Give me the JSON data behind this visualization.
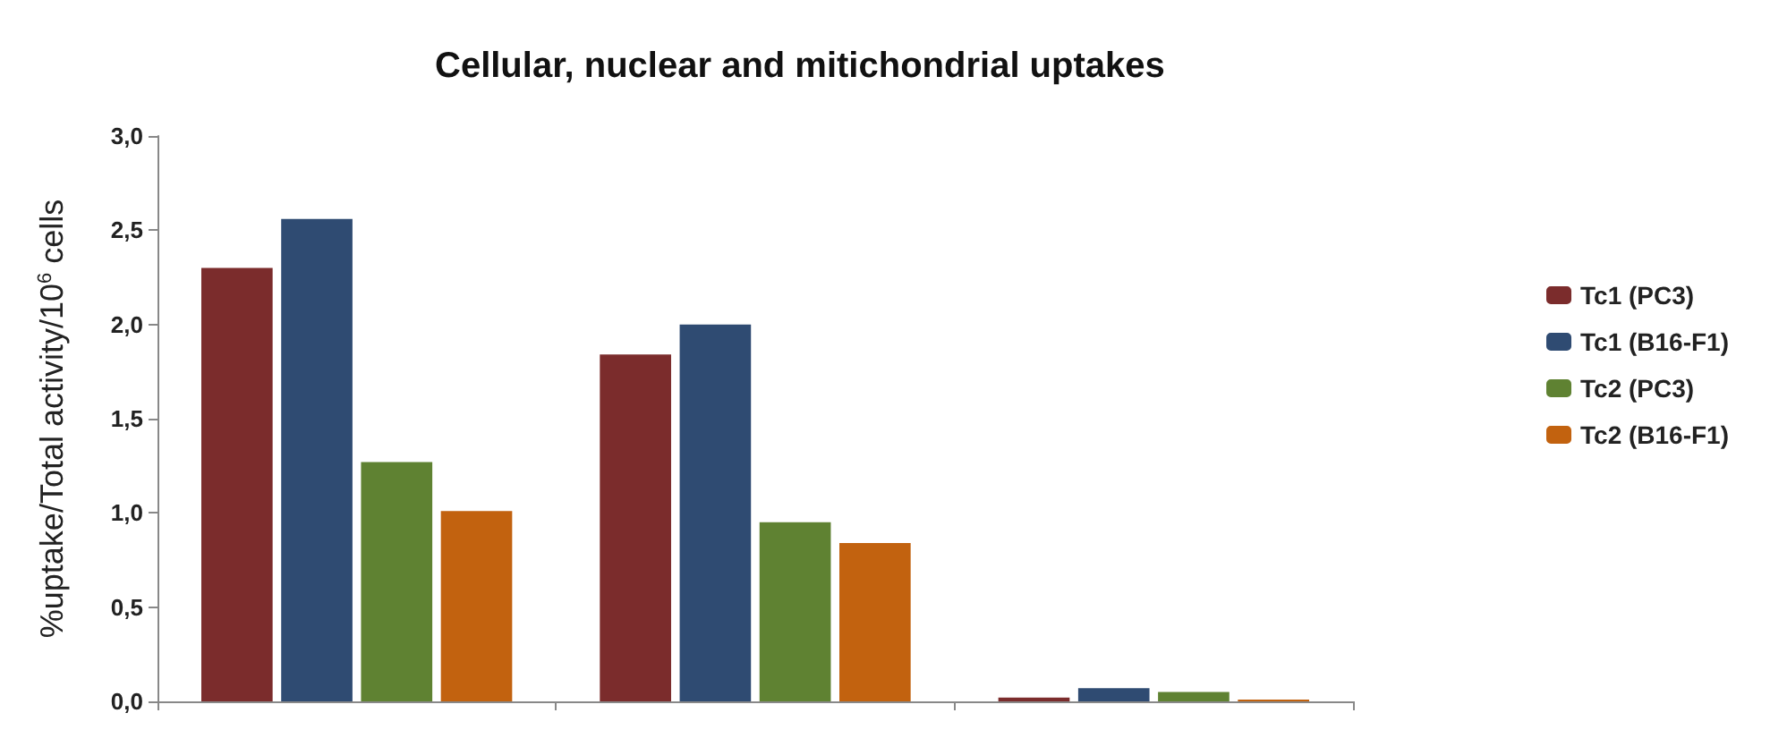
{
  "chart_data": {
    "type": "bar",
    "title": "Cellular, nuclear and mitichondrial uptakes",
    "ylabel": "%uptake/Total activity/10$^{6}$ cells",
    "categories": [
      null,
      null,
      null
    ],
    "series": [
      {
        "name": "Tc1 (PC3)",
        "color": "#7b2c2c",
        "values": [
          2.3,
          1.84,
          0.02
        ]
      },
      {
        "name": "Tc1 (B16-F1)",
        "color": "#2f4b72",
        "values": [
          2.56,
          2.0,
          0.07
        ]
      },
      {
        "name": "Tc2 (PC3)",
        "color": "#5f8232",
        "values": [
          1.27,
          0.95,
          0.05
        ]
      },
      {
        "name": "Tc2 (B16-F1)",
        "color": "#c2620f",
        "values": [
          1.01,
          0.84,
          0.01
        ]
      }
    ],
    "ylim": [
      0,
      3
    ],
    "yticks": [
      {
        "value": 0,
        "label": "0,0"
      },
      {
        "value": 0.5,
        "label": "0,5"
      },
      {
        "value": 1,
        "label": "1,0"
      },
      {
        "value": 1.5,
        "label": "1,5"
      },
      {
        "value": 2,
        "label": "2,0"
      },
      {
        "value": 2.5,
        "label": "2,5"
      },
      {
        "value": 3,
        "label": "3,0"
      }
    ],
    "grid": false,
    "legend": "right"
  }
}
